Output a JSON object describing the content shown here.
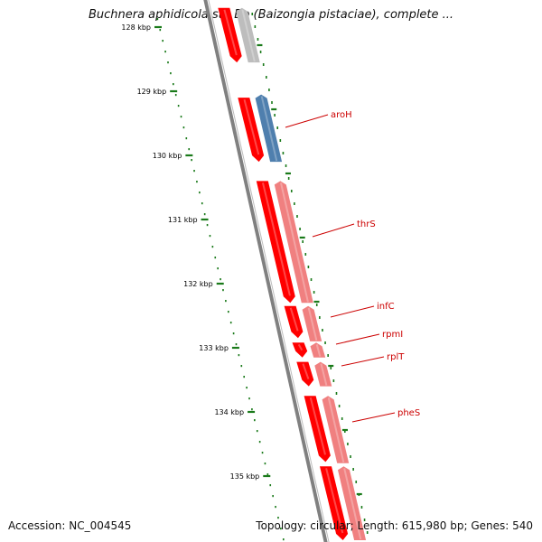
{
  "title": "Buchnera aphidicola str. Bp (Baizongia pistaciae), complete ...",
  "footer": {
    "accession": "Accession: NC_004545",
    "summary": "Topology: circular; Length: 615,980 bp; Genes: 540"
  },
  "colors": {
    "backbone": "#808080",
    "tick": "#1a7a1a",
    "forward_gene": "#ff0000",
    "reverse_gene": "#f08080",
    "rna_gene": "#4f7fae",
    "other_gene": "#bdbdbd",
    "label": "#cc0000"
  },
  "ticks": [
    {
      "kbp": 128,
      "label": "128 kbp"
    },
    {
      "kbp": 129,
      "label": "129 kbp"
    },
    {
      "kbp": 130,
      "label": "130 kbp"
    },
    {
      "kbp": 131,
      "label": "131 kbp"
    },
    {
      "kbp": 132,
      "label": "132 kbp"
    },
    {
      "kbp": 133,
      "label": "133 kbp"
    },
    {
      "kbp": 134,
      "label": "134 kbp"
    },
    {
      "kbp": 135,
      "label": "135 kbp"
    }
  ],
  "genes": [
    {
      "name": "",
      "strand": "forward",
      "type": "forward",
      "start_kbp": 127.7,
      "end_kbp": 128.55
    },
    {
      "name": "",
      "strand": "reverse",
      "type": "other",
      "start_kbp": 127.7,
      "end_kbp": 128.55
    },
    {
      "name": "",
      "strand": "forward",
      "type": "forward",
      "start_kbp": 129.1,
      "end_kbp": 130.1
    },
    {
      "name": "aroH",
      "strand": "reverse",
      "type": "rna",
      "start_kbp": 129.05,
      "end_kbp": 130.1
    },
    {
      "name": "",
      "strand": "forward",
      "type": "forward",
      "start_kbp": 130.4,
      "end_kbp": 132.3
    },
    {
      "name": "thrS",
      "strand": "reverse",
      "type": "reverse",
      "start_kbp": 130.4,
      "end_kbp": 132.3
    },
    {
      "name": "infC",
      "strand": "forward",
      "type": "forward",
      "start_kbp": 132.35,
      "end_kbp": 132.85
    },
    {
      "name": "",
      "strand": "reverse",
      "type": "reverse",
      "start_kbp": 132.35,
      "end_kbp": 132.9
    },
    {
      "name": "rpmI",
      "strand": "forward",
      "type": "forward",
      "start_kbp": 132.92,
      "end_kbp": 133.15
    },
    {
      "name": "",
      "strand": "reverse",
      "type": "reverse",
      "start_kbp": 132.92,
      "end_kbp": 133.15
    },
    {
      "name": "rplT",
      "strand": "forward",
      "type": "forward",
      "start_kbp": 133.22,
      "end_kbp": 133.6
    },
    {
      "name": "",
      "strand": "reverse",
      "type": "reverse",
      "start_kbp": 133.22,
      "end_kbp": 133.6
    },
    {
      "name": "pheS",
      "strand": "forward",
      "type": "forward",
      "start_kbp": 133.75,
      "end_kbp": 134.78
    },
    {
      "name": "",
      "strand": "reverse",
      "type": "reverse",
      "start_kbp": 133.75,
      "end_kbp": 134.8
    },
    {
      "name": "",
      "strand": "forward",
      "type": "forward",
      "start_kbp": 134.85,
      "end_kbp": 136.0
    },
    {
      "name": "",
      "strand": "reverse",
      "type": "reverse",
      "start_kbp": 134.85,
      "end_kbp": 136.0
    }
  ]
}
